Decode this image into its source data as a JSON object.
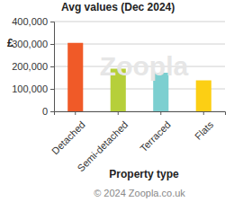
{
  "chart_data": {
    "type": "bar",
    "title": "Avg values (Dec 2024)",
    "x_label": "Property type",
    "y_label": "£",
    "categories": [
      "Detached",
      "Semi-detached",
      "Terraced",
      "Flats"
    ],
    "values": [
      305000,
      190000,
      172000,
      138000
    ],
    "colors": [
      "#f05a28",
      "#b6cf3a",
      "#7ccfd0",
      "#fccf14"
    ],
    "ylim": [
      0,
      400000
    ],
    "yticks": [
      {
        "value": 0,
        "label": "0"
      },
      {
        "value": 100000,
        "label": "100,000"
      },
      {
        "value": 200000,
        "label": "200,000"
      },
      {
        "value": 300000,
        "label": "300,000"
      },
      {
        "value": 400000,
        "label": "400,000"
      }
    ],
    "grid": true,
    "annotations": [
      "Zoopla",
      "© 2024 Zoopla.co.uk"
    ]
  }
}
